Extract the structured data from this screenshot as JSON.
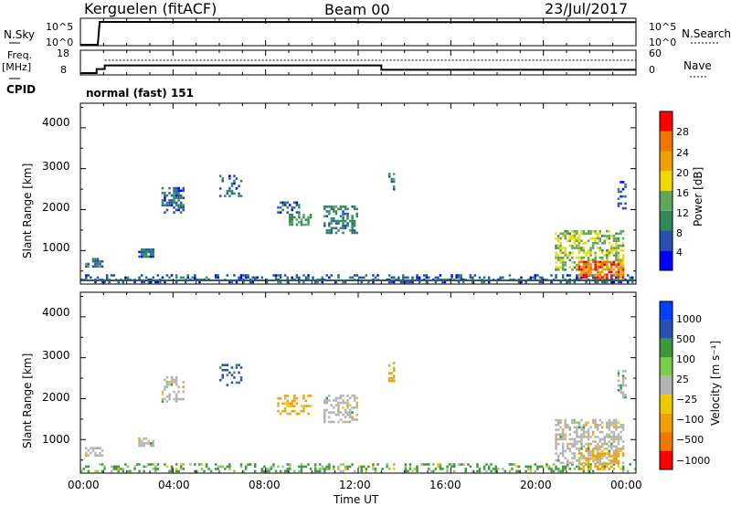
{
  "header": {
    "station": "Kerguelen (fitACF)",
    "beam": "Beam 00",
    "date": "23/Jul/2017"
  },
  "top_panels": {
    "nsky_label": "N.Sky",
    "nsky_ticks": [
      "10^5",
      "10^0"
    ],
    "nsearch_label": "N.Search",
    "nsearch_ticks": [
      "10^5",
      "10^0"
    ],
    "freq_label_1": "Freq.",
    "freq_label_2": "[MHz]",
    "freq_ticks": [
      "18",
      "8"
    ],
    "nave_label": "Nave",
    "nave_ticks": [
      "60",
      "0"
    ],
    "cpid_label": "CPID",
    "cpid_value": "normal (fast) 151"
  },
  "power_panel": {
    "ylabel": "Slant Range [km]",
    "colorbar_label": "Power [dB]"
  },
  "velocity_panel": {
    "ylabel": "Slant Range [km]",
    "colorbar_label": "Velocity [m s⁻¹]"
  },
  "xlabel": "Time UT",
  "colors": {
    "power": [
      "#0000ff",
      "#2850b0",
      "#2e8b57",
      "#5ea85e",
      "#f0d800",
      "#f0a000",
      "#f07800",
      "#ff0000"
    ],
    "velocity": [
      "#ff0000",
      "#f07800",
      "#f0a000",
      "#f0c800",
      "#b4b4b4",
      "#7ccc4c",
      "#3a9a3a",
      "#2850b0",
      "#0040ff"
    ],
    "ground_scatter": "#b4b4b4"
  },
  "chart_data": [
    {
      "type": "line",
      "title": "N.Sky / N.Search",
      "x": [
        "00:00",
        "00:45",
        "00:50",
        "13:00",
        "24:00"
      ],
      "series": [
        {
          "name": "N.Sky",
          "values": [
            0,
            0,
            100000,
            90000,
            90000
          ]
        }
      ],
      "yscale": "log",
      "ylim": [
        1,
        100000
      ]
    },
    {
      "type": "line",
      "title": "Freq. / Nave",
      "x": [
        "00:00",
        "01:00",
        "13:00",
        "24:00"
      ],
      "series": [
        {
          "name": "Freq.",
          "values": [
            8,
            11.5,
            11.5,
            9.5
          ]
        },
        {
          "name": "Nave",
          "values": [
            35,
            35,
            35,
            35
          ]
        }
      ],
      "ylim_left": [
        8,
        18
      ],
      "ylim_right": [
        0,
        60
      ]
    },
    {
      "type": "heatmap",
      "quantity": "Power [dB]",
      "x_ticks": [
        "00:00",
        "04:00",
        "08:00",
        "12:00",
        "16:00",
        "20:00",
        "00:00"
      ],
      "y_ticks": [
        1000,
        2000,
        3000,
        4000
      ],
      "xlim": [
        0,
        24
      ],
      "ylim": [
        180,
        4600
      ],
      "colorbar_ticks": [
        4,
        8,
        12,
        16,
        20,
        24,
        28
      ],
      "colorbar_range": [
        0,
        32
      ],
      "regions": [
        {
          "t0": 0.0,
          "t1": 24.0,
          "r0": 200,
          "r1": 420,
          "level": 6,
          "density": 0.35
        },
        {
          "t0": 0.2,
          "t1": 1.0,
          "r0": 580,
          "r1": 820,
          "level": 9,
          "density": 0.7
        },
        {
          "t0": 2.5,
          "t1": 3.2,
          "r0": 820,
          "r1": 1050,
          "level": 7,
          "density": 0.8
        },
        {
          "t0": 3.5,
          "t1": 4.5,
          "r0": 1900,
          "r1": 2550,
          "level": 7,
          "density": 0.45
        },
        {
          "t0": 6.0,
          "t1": 7.0,
          "r0": 2300,
          "r1": 2850,
          "level": 7,
          "density": 0.3
        },
        {
          "t0": 8.5,
          "t1": 9.5,
          "r0": 1900,
          "r1": 2200,
          "level": 7,
          "density": 0.4
        },
        {
          "t0": 9.0,
          "t1": 10.0,
          "r0": 1600,
          "r1": 1900,
          "level": 12,
          "density": 0.6
        },
        {
          "t0": 10.5,
          "t1": 12.0,
          "r0": 1400,
          "r1": 2100,
          "level": 9,
          "density": 0.45
        },
        {
          "t0": 13.3,
          "t1": 13.6,
          "r0": 2400,
          "r1": 2900,
          "level": 10,
          "density": 0.5
        },
        {
          "t0": 20.5,
          "t1": 23.5,
          "r0": 500,
          "r1": 1500,
          "level": 15,
          "density": 0.55
        },
        {
          "t0": 21.5,
          "t1": 23.5,
          "r0": 250,
          "r1": 750,
          "level": 26,
          "density": 0.65
        },
        {
          "t0": 23.2,
          "t1": 23.6,
          "r0": 2000,
          "r1": 2700,
          "level": 7,
          "density": 0.4
        }
      ]
    },
    {
      "type": "heatmap",
      "quantity": "Velocity [m s⁻¹]",
      "x_ticks": [
        "00:00",
        "04:00",
        "08:00",
        "12:00",
        "16:00",
        "20:00",
        "00:00"
      ],
      "y_ticks": [
        1000,
        2000,
        3000,
        4000
      ],
      "xlim": [
        0,
        24
      ],
      "ylim": [
        180,
        4600
      ],
      "colorbar_ticks": [
        1000,
        500,
        100,
        25,
        -25,
        -100,
        -500,
        -1000
      ],
      "regions": [
        {
          "t0": 0.0,
          "t1": 24.0,
          "r0": 200,
          "r1": 420,
          "level": 150,
          "density": 0.3
        },
        {
          "t0": 0.2,
          "t1": 1.0,
          "r0": 580,
          "r1": 820,
          "level": 0,
          "density": 0.6
        },
        {
          "t0": 2.5,
          "t1": 3.2,
          "r0": 820,
          "r1": 1050,
          "level": 0,
          "density": 0.7
        },
        {
          "t0": 3.5,
          "t1": 4.5,
          "r0": 1900,
          "r1": 2550,
          "level": 0,
          "density": 0.4
        },
        {
          "t0": 6.0,
          "t1": 7.0,
          "r0": 2300,
          "r1": 2850,
          "level": 600,
          "density": 0.3
        },
        {
          "t0": 8.5,
          "t1": 10.0,
          "r0": 1600,
          "r1": 2100,
          "level": -200,
          "density": 0.4
        },
        {
          "t0": 10.5,
          "t1": 12.0,
          "r0": 1400,
          "r1": 2100,
          "level": 0,
          "density": 0.4
        },
        {
          "t0": 13.3,
          "t1": 13.6,
          "r0": 2400,
          "r1": 2900,
          "level": -150,
          "density": 0.4
        },
        {
          "t0": 20.5,
          "t1": 23.5,
          "r0": 400,
          "r1": 1500,
          "level": 0,
          "density": 0.5
        },
        {
          "t0": 21.5,
          "t1": 23.5,
          "r0": 250,
          "r1": 750,
          "level": -200,
          "density": 0.4
        },
        {
          "t0": 23.2,
          "t1": 23.6,
          "r0": 2000,
          "r1": 2700,
          "level": 0,
          "density": 0.35
        }
      ]
    }
  ]
}
